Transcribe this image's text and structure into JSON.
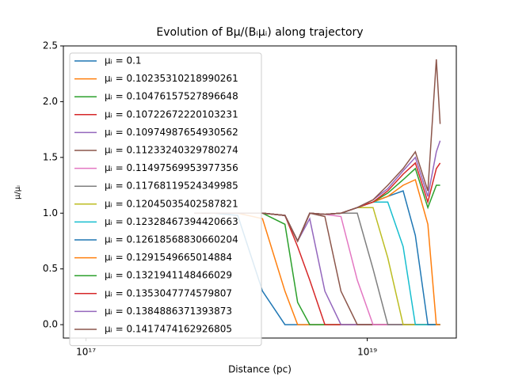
{
  "chart_data": {
    "type": "line",
    "title": "Evolution of Bμ/(Bᵢμᵢ) along trajectory",
    "xlabel": "Distance (pc)",
    "ylabel": "μ/μᵢ",
    "xscale": "log",
    "xlim": [
      6.9e+16,
      4.3e+19
    ],
    "ylim": [
      -0.12,
      2.5
    ],
    "xticks": [
      {
        "value": 1e+17,
        "label": "10¹⁷"
      },
      {
        "value": 1e+19,
        "label": "10¹⁹"
      }
    ],
    "yticks": [
      {
        "value": 0,
        "label": "0.0"
      },
      0.5,
      {
        "value": 1,
        "label": "1.0"
      },
      1.5,
      {
        "value": 2,
        "label": "2.0"
      },
      2.5
    ],
    "legend": "upper left",
    "x": [
      5.9e+17,
      8.2e+17,
      1.2e+18,
      1.8e+18,
      2.6e+18,
      3.2e+18,
      3.9e+18,
      5e+18,
      6.5e+18,
      8.5e+18,
      1.1e+19,
      1.4e+19,
      1.8e+19,
      2.2e+19,
      2.7e+19,
      3.1e+19,
      3.3e+19
    ],
    "series": [
      {
        "name": "μᵢ = 0.1",
        "color": "#1f77b4",
        "values": [
          1,
          1,
          0.98,
          0.3,
          0,
          0,
          0,
          0,
          0,
          0,
          0,
          0,
          0,
          0,
          0,
          0,
          0
        ]
      },
      {
        "name": "μᵢ = 0.10235310218990261",
        "color": "#ff7f0e",
        "values": [
          1,
          1,
          1,
          0.95,
          0.3,
          0,
          0,
          0,
          0,
          0,
          0,
          0,
          0,
          0,
          0,
          0,
          0
        ]
      },
      {
        "name": "μᵢ = 0.10476157527896648",
        "color": "#2ca02c",
        "values": [
          1,
          1,
          1,
          1,
          0.9,
          0.2,
          0,
          0,
          0,
          0,
          0,
          0,
          0,
          0,
          0,
          0,
          0
        ]
      },
      {
        "name": "μᵢ = 0.10722672220103231",
        "color": "#d62728",
        "values": [
          1,
          1,
          1,
          1,
          0.98,
          0.7,
          0.4,
          0,
          0,
          0,
          0,
          0,
          0,
          0,
          0,
          0,
          0
        ]
      },
      {
        "name": "μᵢ = 0.10974987654930562",
        "color": "#9467bd",
        "values": [
          1,
          1,
          1,
          1,
          0.98,
          0.75,
          0.95,
          0.3,
          0,
          0,
          0,
          0,
          0,
          0,
          0,
          0,
          0
        ]
      },
      {
        "name": "μᵢ = 0.11233240329780274",
        "color": "#8c564b",
        "values": [
          1,
          1,
          1,
          1,
          0.98,
          0.75,
          1,
          0.97,
          0.3,
          0,
          0,
          0,
          0,
          0,
          0,
          0,
          0
        ]
      },
      {
        "name": "μᵢ = 0.11497569953977356",
        "color": "#e377c2",
        "values": [
          1,
          1,
          1,
          1,
          0.98,
          0.75,
          1,
          0.99,
          0.97,
          0.4,
          0,
          0,
          0,
          0,
          0,
          0,
          0
        ]
      },
      {
        "name": "μᵢ = 0.11768119524349985",
        "color": "#7f7f7f",
        "values": [
          1,
          1,
          1,
          1,
          0.98,
          0.75,
          1,
          0.99,
          1,
          1,
          0.5,
          0,
          0,
          0,
          0,
          0,
          0
        ]
      },
      {
        "name": "μᵢ = 0.12045035402587821",
        "color": "#bcbd22",
        "values": [
          1,
          1,
          1,
          1,
          0.98,
          0.75,
          1,
          0.99,
          1,
          1.05,
          1.05,
          0.6,
          0,
          0,
          0,
          0,
          0
        ]
      },
      {
        "name": "μᵢ = 0.12328467394420663",
        "color": "#17becf",
        "values": [
          1,
          1,
          1,
          1,
          0.98,
          0.75,
          1,
          0.99,
          1,
          1.05,
          1.1,
          1.1,
          0.7,
          0,
          0,
          0,
          0
        ]
      },
      {
        "name": "μᵢ = 0.12618568830660204",
        "color": "#1f77b4",
        "values": [
          1,
          1,
          1,
          1,
          0.98,
          0.75,
          1,
          0.99,
          1,
          1.05,
          1.1,
          1.15,
          1.2,
          0.8,
          0,
          0,
          0
        ]
      },
      {
        "name": "μᵢ = 0.1291549665014884",
        "color": "#ff7f0e",
        "values": [
          1,
          1,
          1,
          1,
          0.98,
          0.75,
          1,
          0.99,
          1,
          1.05,
          1.1,
          1.15,
          1.25,
          1.3,
          0.9,
          0,
          0
        ]
      },
      {
        "name": "μᵢ = 0.1321941148466029",
        "color": "#2ca02c",
        "values": [
          1,
          1,
          1,
          1,
          0.98,
          0.75,
          1,
          0.99,
          1,
          1.05,
          1.1,
          1.18,
          1.3,
          1.4,
          1.05,
          1.25,
          1.25
        ]
      },
      {
        "name": "μᵢ = 0.1353047774579807",
        "color": "#d62728",
        "values": [
          1,
          1,
          1,
          1,
          0.98,
          0.75,
          1,
          0.99,
          1,
          1.05,
          1.1,
          1.2,
          1.35,
          1.45,
          1.1,
          1.4,
          1.45
        ]
      },
      {
        "name": "μᵢ = 0.1384886371393873",
        "color": "#9467bd",
        "values": [
          1,
          1,
          1,
          1,
          0.98,
          0.75,
          1,
          0.99,
          1,
          1.05,
          1.12,
          1.22,
          1.38,
          1.5,
          1.15,
          1.55,
          1.65
        ]
      },
      {
        "name": "μᵢ = 0.1417474162926805",
        "color": "#8c564b",
        "values": [
          1,
          1,
          1,
          1,
          0.98,
          0.75,
          1,
          0.99,
          1,
          1.05,
          1.12,
          1.25,
          1.4,
          1.55,
          1.2,
          2.38,
          1.8
        ]
      }
    ]
  }
}
